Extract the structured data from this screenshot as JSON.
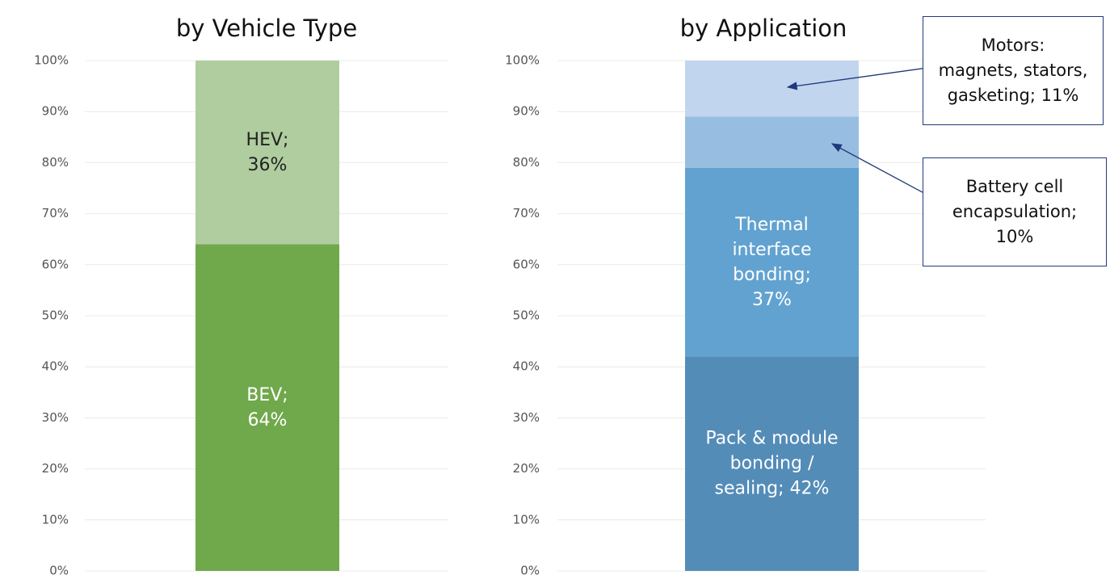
{
  "chart_data": [
    {
      "type": "bar",
      "stacked": true,
      "title": "by Vehicle Type",
      "ylim": [
        0,
        100
      ],
      "yticks": [
        {
          "value": 0,
          "label": "0%"
        },
        {
          "value": 10,
          "label": "10%"
        },
        {
          "value": 20,
          "label": "20%"
        },
        {
          "value": 30,
          "label": "30%"
        },
        {
          "value": 40,
          "label": "40%"
        },
        {
          "value": 50,
          "label": "50%"
        },
        {
          "value": 60,
          "label": "60%"
        },
        {
          "value": 70,
          "label": "70%"
        },
        {
          "value": 80,
          "label": "80%"
        },
        {
          "value": 90,
          "label": "90%"
        },
        {
          "value": 100,
          "label": "100%"
        }
      ],
      "grid": true,
      "series": [
        {
          "color": "#70a84c",
          "values": [
            64
          ],
          "value_labels": [
            "BEV;\n64%"
          ]
        },
        {
          "color": "#afcd9f",
          "values": [
            36
          ],
          "value_labels": [
            "HEV;\n36%"
          ]
        }
      ]
    },
    {
      "type": "bar",
      "stacked": true,
      "title": "by Application",
      "ylim": [
        0,
        100
      ],
      "yticks": [
        {
          "value": 0,
          "label": "0%"
        },
        {
          "value": 10,
          "label": "10%"
        },
        {
          "value": 20,
          "label": "20%"
        },
        {
          "value": 30,
          "label": "30%"
        },
        {
          "value": 40,
          "label": "40%"
        },
        {
          "value": 50,
          "label": "50%"
        },
        {
          "value": 60,
          "label": "60%"
        },
        {
          "value": 70,
          "label": "70%"
        },
        {
          "value": 80,
          "label": "80%"
        },
        {
          "value": 90,
          "label": "90%"
        },
        {
          "value": 100,
          "label": "100%"
        }
      ],
      "grid": true,
      "series": [
        {
          "color": "#548cb8",
          "values": [
            42
          ],
          "value_labels": [
            "Pack & module\nbonding /\nsealing; 42%"
          ]
        },
        {
          "color": "#62a2d0",
          "values": [
            37
          ],
          "value_labels": [
            "Thermal\ninterface\nbonding;\n37%"
          ]
        },
        {
          "color": "#97bde0",
          "values": [
            10
          ],
          "value_labels": [
            "Battery cell\nencapsulation;\n10%"
          ]
        },
        {
          "color": "#c1d6ee",
          "values": [
            11
          ],
          "value_labels": [
            "Motors:\nmagnets, stators,\ngasketing; 11%"
          ]
        }
      ]
    }
  ]
}
